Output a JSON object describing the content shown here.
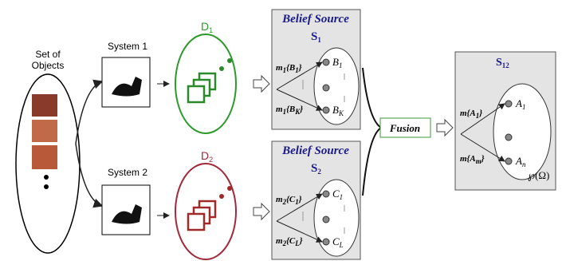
{
  "objects": {
    "lines": [
      "Set of",
      "Objects"
    ]
  },
  "systems": [
    "System 1",
    "System 2"
  ],
  "datasets": [
    {
      "base": "D",
      "sub": "1"
    },
    {
      "base": "D",
      "sub": "2"
    }
  ],
  "sources": [
    {
      "title": "Belief Source",
      "name": {
        "base": "S",
        "sub": "1"
      },
      "masses": [
        [
          {
            "t": "m",
            "sub": "1"
          },
          {
            "t": "{B",
            "sub": "1"
          },
          {
            "t": "}"
          }
        ],
        [
          {
            "t": "m",
            "sub": "1"
          },
          {
            "t": "{B",
            "sub": "K"
          },
          {
            "t": "}"
          }
        ]
      ],
      "elements": [
        {
          "base": "B",
          "sub": "1"
        },
        {
          "base": "B",
          "sub": "K"
        }
      ]
    },
    {
      "title": "Belief Source",
      "name": {
        "base": "S",
        "sub": "2"
      },
      "masses": [
        [
          {
            "t": "m",
            "sub": "2"
          },
          {
            "t": "{C",
            "sub": "1"
          },
          {
            "t": "}"
          }
        ],
        [
          {
            "t": "m",
            "sub": "2"
          },
          {
            "t": "{C",
            "sub": "L"
          },
          {
            "t": "}"
          }
        ]
      ],
      "elements": [
        {
          "base": "C",
          "sub": "1"
        },
        {
          "base": "C",
          "sub": "L"
        }
      ]
    }
  ],
  "fusion": "Fusion",
  "result": {
    "name": {
      "base": "S",
      "sub": "12"
    },
    "masses": [
      [
        {
          "t": "m{A",
          "sub": "1"
        },
        {
          "t": "}"
        }
      ],
      [
        {
          "t": "m{A",
          "sub": "m"
        },
        {
          "t": "}"
        }
      ]
    ],
    "elements": [
      {
        "base": "A",
        "sub": "1"
      },
      {
        "base": "A",
        "sub": "n"
      }
    ],
    "frame": "℘(Ω)"
  }
}
